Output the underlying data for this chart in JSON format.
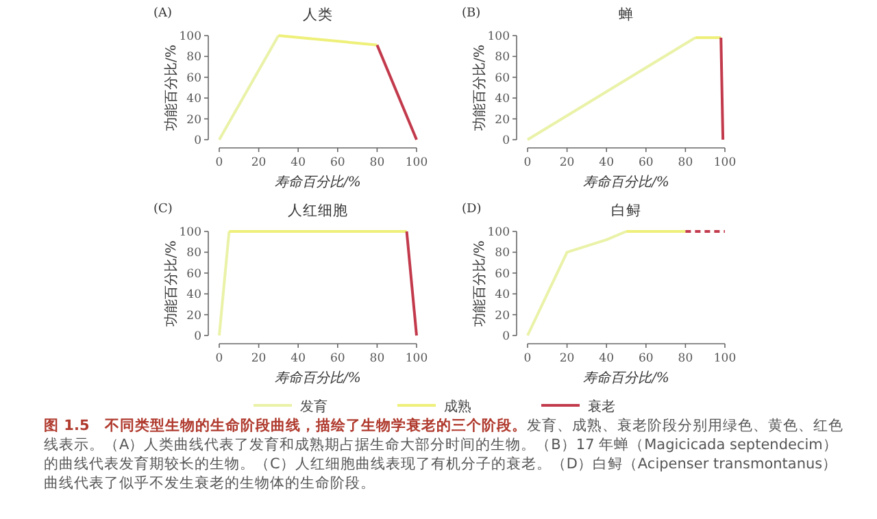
{
  "chart_data": [
    {
      "type": "line",
      "title": "人类",
      "xlabel": "寿命百分比/%",
      "ylabel": "功能百分比/%",
      "annotations": [
        "(A)"
      ],
      "xlim": [
        0,
        100
      ],
      "ylim": [
        0,
        100
      ],
      "xticks": [
        0,
        20,
        40,
        60,
        80,
        100
      ],
      "yticks": [
        0,
        20,
        40,
        60,
        80,
        100
      ],
      "grid": false,
      "marker": "none",
      "series": [
        {
          "color": "#eaf2a8",
          "x": [
            0,
            30
          ],
          "values": [
            0,
            100
          ]
        },
        {
          "color": "#eef07a",
          "x": [
            30,
            80
          ],
          "values": [
            100,
            91
          ]
        },
        {
          "color": "#c23a4c",
          "x": [
            80,
            100
          ],
          "values": [
            91,
            0
          ]
        }
      ]
    },
    {
      "type": "line",
      "title": "蝉",
      "xlabel": "寿命百分比/%",
      "ylabel": "功能百分比/%",
      "annotations": [
        "(B)"
      ],
      "xlim": [
        0,
        100
      ],
      "ylim": [
        0,
        100
      ],
      "xticks": [
        0,
        20,
        40,
        60,
        80,
        100
      ],
      "yticks": [
        0,
        20,
        40,
        60,
        80,
        100
      ],
      "grid": false,
      "marker": "none",
      "series": [
        {
          "color": "#eaf2a8",
          "x": [
            0,
            85
          ],
          "values": [
            0,
            98
          ]
        },
        {
          "color": "#eef07a",
          "x": [
            85,
            98
          ],
          "values": [
            98,
            98
          ]
        },
        {
          "color": "#c23a4c",
          "x": [
            98,
            99
          ],
          "values": [
            98,
            0
          ]
        }
      ]
    },
    {
      "type": "line",
      "title": "人红细胞",
      "xlabel": "寿命百分比/%",
      "ylabel": "功能百分比/%",
      "annotations": [
        "(C)"
      ],
      "xlim": [
        0,
        100
      ],
      "ylim": [
        0,
        100
      ],
      "xticks": [
        0,
        20,
        40,
        60,
        80,
        100
      ],
      "yticks": [
        0,
        20,
        40,
        60,
        80,
        100
      ],
      "grid": false,
      "marker": "none",
      "legend": "bottom",
      "series": [
        {
          "name": "发育",
          "color": "#eaf2a8",
          "x": [
            0,
            5
          ],
          "values": [
            0,
            100
          ]
        },
        {
          "name": "成熟",
          "color": "#eef07a",
          "x": [
            5,
            95
          ],
          "values": [
            100,
            100
          ]
        },
        {
          "name": "衰老",
          "color": "#c23a4c",
          "x": [
            95,
            100
          ],
          "values": [
            100,
            0
          ]
        }
      ]
    },
    {
      "type": "line",
      "title": "白鲟",
      "xlabel": "寿命百分比/%",
      "ylabel": "功能百分比/%",
      "annotations": [
        "(D)",
        "图 1.5　不同类型生物的生命阶段曲线，描绘了生物学衰老的三个阶段。",
        "发育、成熟、衰老阶段分别用绿色、黄色、红色线表示。（A）人类曲线代表了发育和成熟期占据生命大部分时间的生物。（B）17 年蝉（Magicicada septendecim）的曲线代表发育期较长的生物。（C）人红细胞曲线表现了有机分子的衰老。（D）白鲟（Acipenser transmontanus）曲线代表了似乎不发生衰老的生物体的生命阶段。"
      ],
      "xlim": [
        0,
        100
      ],
      "ylim": [
        0,
        100
      ],
      "xticks": [
        0,
        20,
        40,
        60,
        80,
        100
      ],
      "yticks": [
        0,
        20,
        40,
        60,
        80,
        100
      ],
      "grid": false,
      "marker": "none",
      "series": [
        {
          "color": "#eaf2a8",
          "x": [
            0,
            20,
            40,
            50
          ],
          "values": [
            0,
            80,
            92,
            100
          ]
        },
        {
          "color": "#eef07a",
          "x": [
            50,
            80
          ],
          "values": [
            100,
            100
          ]
        },
        {
          "color": "#c23a4c",
          "x": [
            80,
            100
          ],
          "values": [
            100,
            100
          ],
          "line_style": "dashed"
        }
      ]
    }
  ]
}
